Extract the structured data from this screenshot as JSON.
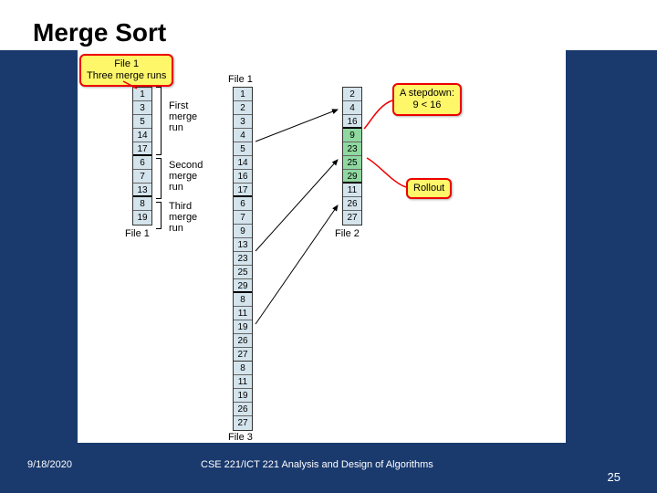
{
  "slide": {
    "title": "Merge Sort",
    "date": "9/18/2020",
    "course": "CSE 221/ICT 221 Analysis and Design of Algorithms",
    "page_number": "25"
  },
  "colors": {
    "slide_bg": "#1a3a6e",
    "diagram_bg": "#ffffff",
    "cell_bg": "#d4e4ec",
    "cell_highlight": "#8fd89f",
    "callout_bg": "#fff76a",
    "callout_border": "#e00"
  },
  "files": {
    "file1_top": {
      "label": "File 1",
      "cells": [
        "1",
        "3",
        "5",
        "14",
        "17",
        "6",
        "7",
        "13",
        "8",
        "19"
      ],
      "breaks_after": [
        4,
        7
      ]
    },
    "file1_bottom": {
      "label": "File 1",
      "cells": [
        "1",
        "2",
        "3",
        "4",
        "5",
        "14",
        "16",
        "17",
        "6",
        "7",
        "9",
        "13",
        "23",
        "25",
        "29",
        "8",
        "11",
        "19",
        "26",
        "27"
      ],
      "breaks_after": [
        7,
        14
      ]
    },
    "file2": {
      "label": "File 2",
      "cells": [
        "2",
        "4",
        "16",
        "9",
        "23",
        "25",
        "29",
        "11",
        "26",
        "27"
      ],
      "breaks_after": [
        2,
        6
      ],
      "highlight": [
        3,
        4,
        5,
        6
      ]
    },
    "file3": {
      "label": "File 3",
      "cells": [
        "8",
        "11",
        "19",
        "26",
        "27"
      ]
    }
  },
  "run_labels": {
    "first": "First\nmerge\nrun",
    "second": "Second\nmerge\nrun",
    "third": "Third\nmerge\nrun"
  },
  "callouts": {
    "file1_header": "File 1\nThree merge runs",
    "stepdown": "A stepdown:\n9 < 16",
    "rollout": "Rollout"
  }
}
